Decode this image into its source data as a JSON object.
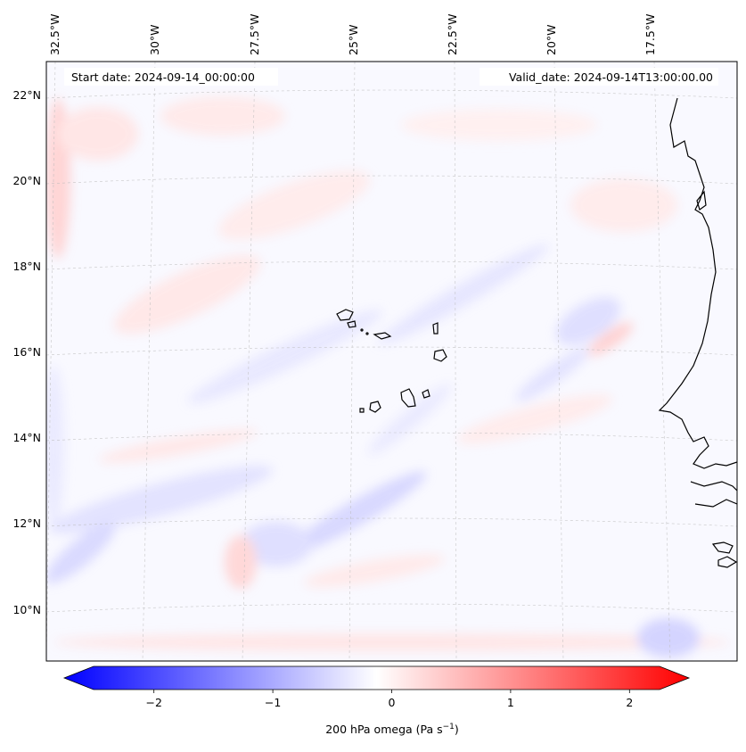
{
  "map": {
    "start_label": "Start date: 2024-09-14_00:00:00",
    "valid_label": "Valid_date: 2024-09-14T13:00:00.00",
    "lon_labels": [
      "32.5°W",
      "30°W",
      "27.5°W",
      "25°W",
      "22.5°W",
      "20°W",
      "17.5°W"
    ],
    "lat_labels": [
      "22°N",
      "20°N",
      "18°N",
      "16°N",
      "14°N",
      "12°N",
      "10°N"
    ]
  },
  "colorbar": {
    "label_prefix": "200 hPa omega (Pa s",
    "label_exp": "−1",
    "label_suffix": ")",
    "ticks": [
      "−2",
      "−1",
      "0",
      "1",
      "2"
    ],
    "min": -2.5,
    "max": 2.5,
    "colors": {
      "low": "#0000ff",
      "mid": "#ffffff",
      "high": "#ff0000"
    }
  }
}
